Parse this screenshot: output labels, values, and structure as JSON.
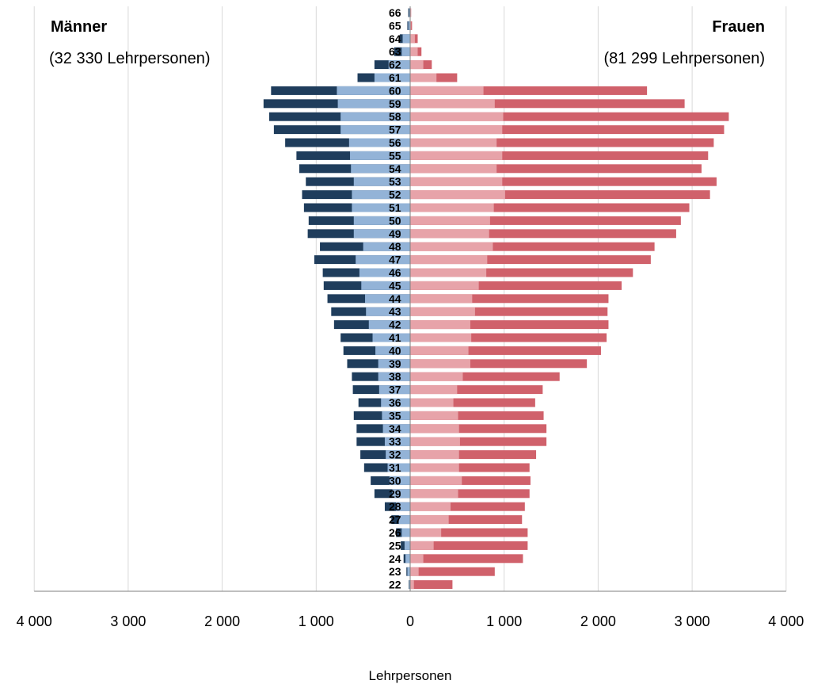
{
  "chart_data": {
    "type": "bar",
    "orientation": "horizontal-butterfly",
    "xlabel": "Lehrpersonen",
    "xlim": [
      -4000,
      4000
    ],
    "xticks": [
      -4000,
      -3000,
      -2000,
      -1000,
      0,
      1000,
      2000,
      3000,
      4000
    ],
    "xtick_labels": [
      "4 000",
      "3 000",
      "2 000",
      "1 000",
      "0",
      "1 000",
      "2 000",
      "3 000",
      "4 000"
    ],
    "grid": true,
    "left_group": {
      "title": "Männer",
      "subtitle": "(32 330 Lehrpersonen)"
    },
    "right_group": {
      "title": "Frauen",
      "subtitle": "(81 299 Lehrpersonen)"
    },
    "colors": {
      "men_dark": "#1f3d5c",
      "men_light": "#93b3d7",
      "women_dark": "#d0616b",
      "women_light": "#e7a3a9"
    },
    "categories": [
      22,
      23,
      24,
      25,
      26,
      27,
      28,
      29,
      30,
      31,
      32,
      33,
      34,
      35,
      36,
      37,
      38,
      39,
      40,
      41,
      42,
      43,
      44,
      45,
      46,
      47,
      48,
      49,
      50,
      51,
      52,
      53,
      54,
      55,
      56,
      57,
      58,
      59,
      60,
      61,
      62,
      63,
      64,
      65,
      66
    ],
    "series": [
      {
        "group": "men",
        "shade": "light",
        "values": [
          10,
          30,
          50,
          60,
          90,
          120,
          150,
          190,
          220,
          240,
          260,
          270,
          290,
          300,
          310,
          330,
          340,
          340,
          370,
          400,
          440,
          470,
          480,
          520,
          540,
          580,
          500,
          600,
          600,
          620,
          620,
          600,
          630,
          640,
          650,
          740,
          740,
          770,
          780,
          380,
          230,
          90,
          80,
          20,
          10
        ]
      },
      {
        "group": "men",
        "shade": "dark",
        "values": [
          15,
          40,
          70,
          100,
          150,
          200,
          270,
          380,
          420,
          490,
          530,
          570,
          570,
          600,
          550,
          610,
          620,
          670,
          710,
          740,
          810,
          840,
          880,
          920,
          930,
          1020,
          960,
          1090,
          1080,
          1130,
          1150,
          1110,
          1180,
          1210,
          1330,
          1450,
          1500,
          1560,
          1480,
          560,
          380,
          170,
          110,
          30,
          20
        ]
      },
      {
        "group": "women",
        "shade": "light",
        "values": [
          40,
          90,
          140,
          250,
          330,
          410,
          430,
          510,
          550,
          520,
          520,
          530,
          520,
          510,
          460,
          500,
          560,
          640,
          620,
          650,
          640,
          690,
          660,
          730,
          810,
          820,
          880,
          840,
          850,
          890,
          1010,
          980,
          920,
          980,
          920,
          980,
          990,
          900,
          780,
          280,
          140,
          80,
          50,
          10,
          10
        ]
      },
      {
        "group": "women",
        "shade": "dark",
        "values": [
          450,
          900,
          1200,
          1250,
          1250,
          1190,
          1220,
          1270,
          1280,
          1270,
          1340,
          1450,
          1450,
          1420,
          1330,
          1410,
          1590,
          1880,
          2030,
          2090,
          2110,
          2100,
          2110,
          2250,
          2370,
          2560,
          2600,
          2830,
          2880,
          2970,
          3190,
          3260,
          3100,
          3170,
          3230,
          3340,
          3390,
          2920,
          2520,
          500,
          230,
          120,
          80,
          20,
          10
        ]
      }
    ]
  }
}
